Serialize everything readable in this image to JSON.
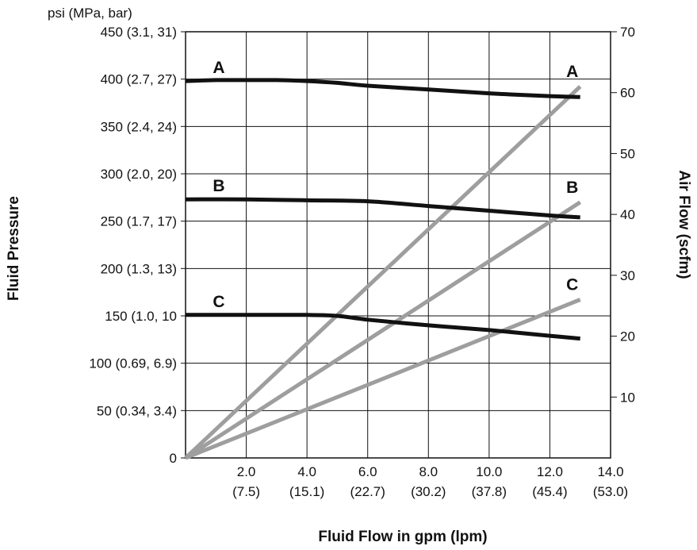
{
  "chart_data": {
    "type": "line",
    "title": "",
    "xlabel": "Fluid Flow in gpm (lpm)",
    "ylabel_left": "Fluid Pressure",
    "ylabel_left_unit": "psi (MPa, bar)",
    "ylabel_right": "Air Flow (scfm)",
    "xlim": [
      0,
      14
    ],
    "ylim_left": [
      0,
      450
    ],
    "ylim_right": [
      0,
      70
    ],
    "grid": true,
    "x_ticks": [
      {
        "value": 2,
        "label": "2.0",
        "sublabel": "(7.5)"
      },
      {
        "value": 4,
        "label": "4.0",
        "sublabel": "(15.1)"
      },
      {
        "value": 6,
        "label": "6.0",
        "sublabel": "(22.7)"
      },
      {
        "value": 8,
        "label": "8.0",
        "sublabel": "(30.2)"
      },
      {
        "value": 10,
        "label": "10.0",
        "sublabel": "(37.8)"
      },
      {
        "value": 12,
        "label": "12.0",
        "sublabel": "(45.4)"
      },
      {
        "value": 14,
        "label": "14.0",
        "sublabel": "(53.0)"
      }
    ],
    "y_left_ticks": [
      {
        "value": 0,
        "label": "0"
      },
      {
        "value": 50,
        "label": "50 (0.34, 3.4)"
      },
      {
        "value": 100,
        "label": "100 (0.69, 6.9)"
      },
      {
        "value": 150,
        "label": "150 (1.0, 10"
      },
      {
        "value": 200,
        "label": "200 (1.3, 13)"
      },
      {
        "value": 250,
        "label": "250 (1.7, 17)"
      },
      {
        "value": 300,
        "label": "300 (2.0, 20)"
      },
      {
        "value": 350,
        "label": "350 (2.4, 24)"
      },
      {
        "value": 400,
        "label": "400 (2.7, 27)"
      },
      {
        "value": 450,
        "label": "450 (3.1, 31)"
      }
    ],
    "y_right_ticks": [
      {
        "value": 10,
        "label": "10"
      },
      {
        "value": 20,
        "label": "20"
      },
      {
        "value": 30,
        "label": "30"
      },
      {
        "value": 40,
        "label": "40"
      },
      {
        "value": 50,
        "label": "50"
      },
      {
        "value": 60,
        "label": "60"
      },
      {
        "value": 70,
        "label": "70"
      }
    ],
    "series": [
      {
        "name": "A",
        "axis": "left",
        "color": "#111111",
        "x": [
          0,
          1,
          2,
          3,
          4,
          5,
          6,
          8,
          10,
          12,
          13
        ],
        "y": [
          398,
          399,
          399,
          399,
          398,
          396,
          393,
          389,
          385,
          382,
          381
        ]
      },
      {
        "name": "B",
        "axis": "left",
        "color": "#111111",
        "x": [
          0,
          2,
          4,
          6,
          8,
          10,
          12,
          13
        ],
        "y": [
          273,
          273,
          272,
          271,
          266,
          261,
          256,
          254
        ]
      },
      {
        "name": "C",
        "axis": "left",
        "color": "#111111",
        "x": [
          0,
          2,
          4,
          5,
          6,
          8,
          10,
          12,
          13
        ],
        "y": [
          151,
          151,
          151,
          150,
          146,
          140,
          135,
          129,
          126
        ]
      },
      {
        "name": "A",
        "axis": "right",
        "color": "#9e9e9e",
        "x": [
          0,
          13
        ],
        "y": [
          0,
          61
        ]
      },
      {
        "name": "B",
        "axis": "right",
        "color": "#9e9e9e",
        "x": [
          0,
          13
        ],
        "y": [
          0,
          42
        ]
      },
      {
        "name": "C",
        "axis": "right",
        "color": "#9e9e9e",
        "x": [
          0,
          13
        ],
        "y": [
          0,
          26
        ]
      }
    ]
  }
}
